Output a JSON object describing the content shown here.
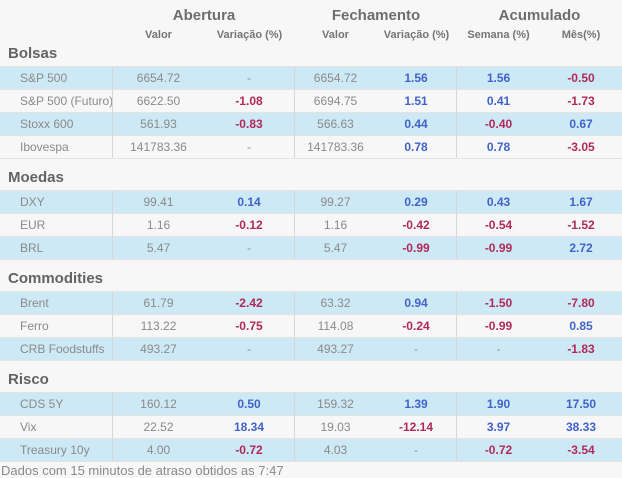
{
  "colors": {
    "background": "#f7f7f7",
    "row_highlight": "#cde9f5",
    "positive": "#4063c9",
    "negative": "#b02958",
    "text_gray": "#8a8a8a"
  },
  "header": {
    "groups": [
      {
        "label": "Abertura",
        "sub": [
          "Valor",
          "Variação (%)"
        ]
      },
      {
        "label": "Fechamento",
        "sub": [
          "Valor",
          "Variação (%)"
        ]
      },
      {
        "label": "Acumulado",
        "sub": [
          "Semana (%)",
          "Mês(%)"
        ]
      }
    ]
  },
  "sections": [
    {
      "title": "Bolsas",
      "rows": [
        {
          "name": "S&P 500",
          "cells": [
            {
              "value": "6654.72",
              "tone": "plain"
            },
            {
              "value": "-",
              "tone": "neutral"
            },
            {
              "value": "6654.72",
              "tone": "plain"
            },
            {
              "value": "1.56",
              "tone": "pos"
            },
            {
              "value": "1.56",
              "tone": "pos"
            },
            {
              "value": "-0.50",
              "tone": "neg"
            }
          ]
        },
        {
          "name": "S&P 500 (Futuro)",
          "cells": [
            {
              "value": "6622.50",
              "tone": "plain"
            },
            {
              "value": "-1.08",
              "tone": "neg"
            },
            {
              "value": "6694.75",
              "tone": "plain"
            },
            {
              "value": "1.51",
              "tone": "pos"
            },
            {
              "value": "0.41",
              "tone": "pos"
            },
            {
              "value": "-1.73",
              "tone": "neg"
            }
          ]
        },
        {
          "name": "Stoxx 600",
          "cells": [
            {
              "value": "561.93",
              "tone": "plain"
            },
            {
              "value": "-0.83",
              "tone": "neg"
            },
            {
              "value": "566.63",
              "tone": "plain"
            },
            {
              "value": "0.44",
              "tone": "pos"
            },
            {
              "value": "-0.40",
              "tone": "neg"
            },
            {
              "value": "0.67",
              "tone": "pos"
            }
          ]
        },
        {
          "name": "Ibovespa",
          "cells": [
            {
              "value": "141783.36",
              "tone": "plain"
            },
            {
              "value": "-",
              "tone": "neutral"
            },
            {
              "value": "141783.36",
              "tone": "plain"
            },
            {
              "value": "0.78",
              "tone": "pos"
            },
            {
              "value": "0.78",
              "tone": "pos"
            },
            {
              "value": "-3.05",
              "tone": "neg"
            }
          ]
        }
      ]
    },
    {
      "title": "Moedas",
      "rows": [
        {
          "name": "DXY",
          "cells": [
            {
              "value": "99.41",
              "tone": "plain"
            },
            {
              "value": "0.14",
              "tone": "pos"
            },
            {
              "value": "99.27",
              "tone": "plain"
            },
            {
              "value": "0.29",
              "tone": "pos"
            },
            {
              "value": "0.43",
              "tone": "pos"
            },
            {
              "value": "1.67",
              "tone": "pos"
            }
          ]
        },
        {
          "name": "EUR",
          "cells": [
            {
              "value": "1.16",
              "tone": "plain"
            },
            {
              "value": "-0.12",
              "tone": "neg"
            },
            {
              "value": "1.16",
              "tone": "plain"
            },
            {
              "value": "-0.42",
              "tone": "neg"
            },
            {
              "value": "-0.54",
              "tone": "neg"
            },
            {
              "value": "-1.52",
              "tone": "neg"
            }
          ]
        },
        {
          "name": "BRL",
          "cells": [
            {
              "value": "5.47",
              "tone": "plain"
            },
            {
              "value": "-",
              "tone": "neutral"
            },
            {
              "value": "5.47",
              "tone": "plain"
            },
            {
              "value": "-0.99",
              "tone": "neg"
            },
            {
              "value": "-0.99",
              "tone": "neg"
            },
            {
              "value": "2.72",
              "tone": "pos"
            }
          ]
        }
      ]
    },
    {
      "title": "Commodities",
      "rows": [
        {
          "name": "Brent",
          "cells": [
            {
              "value": "61.79",
              "tone": "plain"
            },
            {
              "value": "-2.42",
              "tone": "neg"
            },
            {
              "value": "63.32",
              "tone": "plain"
            },
            {
              "value": "0.94",
              "tone": "pos"
            },
            {
              "value": "-1.50",
              "tone": "neg"
            },
            {
              "value": "-7.80",
              "tone": "neg"
            }
          ]
        },
        {
          "name": "Ferro",
          "cells": [
            {
              "value": "113.22",
              "tone": "plain"
            },
            {
              "value": "-0.75",
              "tone": "neg"
            },
            {
              "value": "114.08",
              "tone": "plain"
            },
            {
              "value": "-0.24",
              "tone": "neg"
            },
            {
              "value": "-0.99",
              "tone": "neg"
            },
            {
              "value": "0.85",
              "tone": "pos"
            }
          ]
        },
        {
          "name": "CRB Foodstuffs",
          "cells": [
            {
              "value": "493.27",
              "tone": "plain"
            },
            {
              "value": "-",
              "tone": "neutral"
            },
            {
              "value": "493.27",
              "tone": "plain"
            },
            {
              "value": "-",
              "tone": "neutral"
            },
            {
              "value": "-",
              "tone": "neutral"
            },
            {
              "value": "-1.83",
              "tone": "neg"
            }
          ]
        }
      ]
    },
    {
      "title": "Risco",
      "rows": [
        {
          "name": "CDS 5Y",
          "cells": [
            {
              "value": "160.12",
              "tone": "plain"
            },
            {
              "value": "0.50",
              "tone": "pos"
            },
            {
              "value": "159.32",
              "tone": "plain"
            },
            {
              "value": "1.39",
              "tone": "pos"
            },
            {
              "value": "1.90",
              "tone": "pos"
            },
            {
              "value": "17.50",
              "tone": "pos"
            }
          ]
        },
        {
          "name": "Vix",
          "cells": [
            {
              "value": "22.52",
              "tone": "plain"
            },
            {
              "value": "18.34",
              "tone": "pos"
            },
            {
              "value": "19.03",
              "tone": "plain"
            },
            {
              "value": "-12.14",
              "tone": "neg"
            },
            {
              "value": "3.97",
              "tone": "pos"
            },
            {
              "value": "38.33",
              "tone": "pos"
            }
          ]
        },
        {
          "name": "Treasury 10y",
          "cells": [
            {
              "value": "4.00",
              "tone": "plain"
            },
            {
              "value": "-0.72",
              "tone": "neg"
            },
            {
              "value": "4.03",
              "tone": "plain"
            },
            {
              "value": "-",
              "tone": "neutral"
            },
            {
              "value": "-0.72",
              "tone": "neg"
            },
            {
              "value": "-3.54",
              "tone": "neg"
            }
          ]
        }
      ]
    }
  ],
  "footer": "Dados com 15 minutos de atraso obtidos as 7:47"
}
